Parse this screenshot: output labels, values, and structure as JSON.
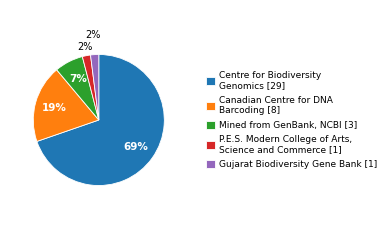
{
  "chart_data": {
    "type": "pie",
    "categories": [
      "Centre for Biodiversity\nGenomics [29]",
      "Canadian Centre for DNA\nBarcoding [8]",
      "Mined from GenBank, NCBI [3]",
      "P.E.S. Modern College of Arts,\nScience and Commerce [1]",
      "Gujarat Biodiversity Gene Bank [1]"
    ],
    "values": [
      69,
      19,
      7,
      2,
      2
    ],
    "value_labels": [
      "69%",
      "19%",
      "7%",
      "2%",
      "2%"
    ],
    "data_labels": true,
    "legend": "center left"
  }
}
